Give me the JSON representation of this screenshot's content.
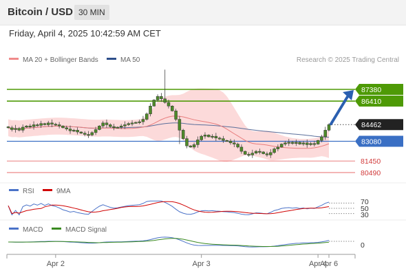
{
  "header": {
    "title": "Bitcoin / USD",
    "timeframe": "30 MIN"
  },
  "date_line": "Friday, April 4, 2025 10:42:59 AM CET",
  "colors": {
    "resistance": "#4e9a06",
    "support": "#e86b6b",
    "pivot": "#3a6fc4",
    "current": "#222222",
    "arrow": "#2a5fb0",
    "bands": "#fbd4d4",
    "ma20": "#e87c7c",
    "ma50": "#5a6e9a",
    "candle": "#4e8a2a",
    "rsi": "#4a72c8",
    "rsi_ma": "#d00000",
    "macd": "#4a72c8",
    "macd_signal": "#3a8a20"
  },
  "chart_data": [
    {
      "type": "candlestick",
      "title": "Bitcoin / USD",
      "legend": [
        {
          "label": "MA 20 + Bollinger Bands",
          "color": "#f08a8a"
        },
        {
          "label": "MA 50",
          "color": "#2d4e8a"
        }
      ],
      "credit": "Research © 2025 Trading Central",
      "levels": [
        {
          "label": "87380",
          "value": 87380,
          "kind": "resistance"
        },
        {
          "label": "86410",
          "value": 86410,
          "kind": "resistance"
        },
        {
          "label": "84462",
          "value": 84462,
          "kind": "current"
        },
        {
          "label": "83080",
          "value": 83080,
          "kind": "pivot"
        },
        {
          "label": "81450",
          "value": 81450,
          "kind": "support"
        },
        {
          "label": "80490",
          "value": 80490,
          "kind": "support"
        }
      ],
      "x_ticks": [
        "Apr 2",
        "Apr 3",
        "Apr 4",
        "Apr 6"
      ],
      "closes": [
        84200,
        84050,
        84150,
        84000,
        84250,
        84350,
        84300,
        84450,
        84400,
        84550,
        84450,
        84600,
        84500,
        84450,
        84350,
        84200,
        84100,
        83950,
        84000,
        83850,
        83750,
        83650,
        83600,
        83800,
        84050,
        84350,
        84600,
        84450,
        84300,
        84200,
        84250,
        84350,
        84450,
        84550,
        84600,
        84650,
        84700,
        84900,
        85350,
        86000,
        86500,
        86800,
        86600,
        86300,
        86000,
        85600,
        84900,
        84000,
        83300,
        82700,
        82600,
        82800,
        83200,
        83500,
        83600,
        83450,
        83500,
        83350,
        83300,
        83150,
        83100,
        82950,
        82850,
        82600,
        82250,
        82000,
        81950,
        82100,
        82250,
        82200,
        82050,
        81950,
        82150,
        82450,
        82600,
        82850,
        82950,
        83000,
        82900,
        83000,
        82850,
        82950,
        82800,
        82900,
        82850,
        83150,
        83450,
        84000,
        84462
      ]
    },
    {
      "type": "line",
      "name": "RSI panel",
      "series": [
        {
          "name": "RSI"
        },
        {
          "name": "9MA"
        }
      ],
      "y_ticks": [
        "70",
        "50",
        "30"
      ]
    },
    {
      "type": "line",
      "name": "MACD panel",
      "series": [
        {
          "name": "MACD"
        },
        {
          "name": "MACD Signal"
        }
      ],
      "y_ticks": [
        "0"
      ]
    }
  ]
}
